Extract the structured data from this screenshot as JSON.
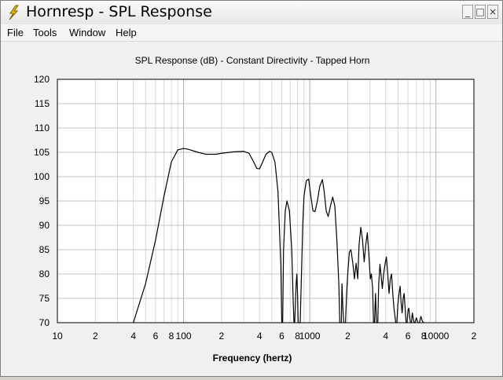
{
  "window": {
    "title": "Hornresp - SPL Response",
    "app_icon": "lightning-bolt-icon",
    "controls": {
      "minimize": "_",
      "maximize": "□",
      "close": "×"
    }
  },
  "menu": [
    {
      "label": "File"
    },
    {
      "label": "Tools"
    },
    {
      "label": "Window"
    },
    {
      "label": "Help"
    }
  ],
  "chart_data": {
    "type": "line",
    "title": "SPL Response (dB) - Constant Directivity - Tapped Horn",
    "xlabel": "Frequency (hertz)",
    "ylabel": "",
    "xscale": "log",
    "xlim": [
      10,
      20000
    ],
    "ylim": [
      70,
      120
    ],
    "grid": true,
    "y_ticks": [
      "120",
      "115",
      "110",
      "105",
      "100",
      "95",
      "90",
      "85",
      "80",
      "75",
      "70"
    ],
    "x_tick_labels": [
      {
        "value": 10,
        "label": "10"
      },
      {
        "value": 20,
        "label": "2"
      },
      {
        "value": 40,
        "label": "4"
      },
      {
        "value": 60,
        "label": "6"
      },
      {
        "value": 80,
        "label": "8"
      },
      {
        "value": 100,
        "label": "100"
      },
      {
        "value": 200,
        "label": "2"
      },
      {
        "value": 400,
        "label": "4"
      },
      {
        "value": 600,
        "label": "6"
      },
      {
        "value": 800,
        "label": "8"
      },
      {
        "value": 1000,
        "label": "1000"
      },
      {
        "value": 2000,
        "label": "2"
      },
      {
        "value": 4000,
        "label": "4"
      },
      {
        "value": 6000,
        "label": "6"
      },
      {
        "value": 8000,
        "label": "8"
      },
      {
        "value": 10000,
        "label": "10000"
      },
      {
        "value": 20000,
        "label": "2"
      }
    ],
    "series": [
      {
        "color": "#000000",
        "points": [
          [
            40,
            70
          ],
          [
            50,
            78
          ],
          [
            60,
            87
          ],
          [
            70,
            96
          ],
          [
            80,
            103
          ],
          [
            90,
            105.5
          ],
          [
            100,
            105.8
          ],
          [
            110,
            105.6
          ],
          [
            130,
            105
          ],
          [
            150,
            104.6
          ],
          [
            180,
            104.6
          ],
          [
            200,
            104.8
          ],
          [
            250,
            105.1
          ],
          [
            300,
            105.2
          ],
          [
            330,
            104.8
          ],
          [
            360,
            103
          ],
          [
            380,
            101.7
          ],
          [
            400,
            101.6
          ],
          [
            420,
            102.8
          ],
          [
            450,
            104.6
          ],
          [
            480,
            105.2
          ],
          [
            500,
            105
          ],
          [
            530,
            103
          ],
          [
            560,
            97
          ],
          [
            590,
            82
          ],
          [
            600,
            70
          ],
          [
            610,
            70
          ],
          [
            620,
            85
          ],
          [
            640,
            93
          ],
          [
            660,
            95
          ],
          [
            690,
            93
          ],
          [
            720,
            85
          ],
          [
            740,
            74
          ],
          [
            750,
            70
          ],
          [
            760,
            70
          ],
          [
            780,
            78
          ],
          [
            790,
            80
          ],
          [
            800,
            76
          ],
          [
            810,
            70
          ],
          [
            840,
            70
          ],
          [
            860,
            80
          ],
          [
            880,
            90
          ],
          [
            900,
            96
          ],
          [
            940,
            99.2
          ],
          [
            980,
            99.5
          ],
          [
            1020,
            96
          ],
          [
            1060,
            93
          ],
          [
            1100,
            92.8
          ],
          [
            1150,
            95
          ],
          [
            1200,
            98
          ],
          [
            1260,
            99.4
          ],
          [
            1300,
            97
          ],
          [
            1350,
            93
          ],
          [
            1400,
            91.8
          ],
          [
            1460,
            94
          ],
          [
            1520,
            95.8
          ],
          [
            1580,
            94
          ],
          [
            1640,
            87
          ],
          [
            1700,
            78
          ],
          [
            1730,
            70
          ],
          [
            1780,
            70
          ],
          [
            1800,
            78
          ],
          [
            1830,
            73
          ],
          [
            1860,
            70
          ],
          [
            1920,
            70
          ],
          [
            1960,
            76
          ],
          [
            2000,
            80
          ],
          [
            2060,
            84.5
          ],
          [
            2120,
            85
          ],
          [
            2200,
            82
          ],
          [
            2260,
            79
          ],
          [
            2330,
            82.2
          ],
          [
            2400,
            79
          ],
          [
            2460,
            86
          ],
          [
            2540,
            89.6
          ],
          [
            2620,
            87
          ],
          [
            2700,
            82.5
          ],
          [
            2780,
            86
          ],
          [
            2860,
            88.5
          ],
          [
            2940,
            84
          ],
          [
            3020,
            79
          ],
          [
            3080,
            80
          ],
          [
            3150,
            77
          ],
          [
            3200,
            70
          ],
          [
            3260,
            70
          ],
          [
            3320,
            76
          ],
          [
            3380,
            70
          ],
          [
            3460,
            70
          ],
          [
            3520,
            78
          ],
          [
            3600,
            82
          ],
          [
            3680,
            79.5
          ],
          [
            3760,
            77
          ],
          [
            3850,
            80
          ],
          [
            3950,
            82
          ],
          [
            4050,
            83.5
          ],
          [
            4150,
            80
          ],
          [
            4250,
            76
          ],
          [
            4350,
            79
          ],
          [
            4450,
            80
          ],
          [
            4550,
            76
          ],
          [
            4650,
            73
          ],
          [
            4750,
            71
          ],
          [
            4800,
            70
          ],
          [
            4900,
            70
          ],
          [
            5000,
            74
          ],
          [
            5100,
            76
          ],
          [
            5200,
            77.5
          ],
          [
            5300,
            74
          ],
          [
            5400,
            72
          ],
          [
            5500,
            75
          ],
          [
            5600,
            76
          ],
          [
            5700,
            73
          ],
          [
            5800,
            70
          ],
          [
            5900,
            70
          ],
          [
            6000,
            72.5
          ],
          [
            6100,
            73
          ],
          [
            6200,
            71
          ],
          [
            6300,
            70
          ],
          [
            6400,
            70
          ],
          [
            6500,
            72
          ],
          [
            6600,
            71
          ],
          [
            6700,
            70
          ],
          [
            6800,
            70
          ],
          [
            7000,
            71
          ],
          [
            7200,
            70
          ],
          [
            7400,
            70
          ],
          [
            7600,
            71.3
          ],
          [
            7800,
            70.3
          ],
          [
            8000,
            70
          ]
        ]
      }
    ]
  }
}
